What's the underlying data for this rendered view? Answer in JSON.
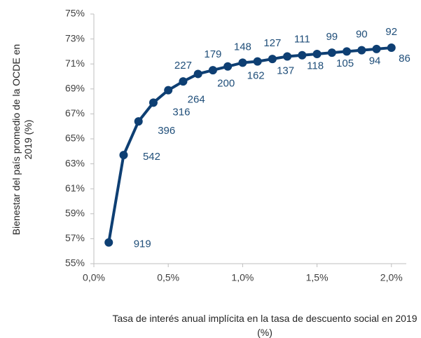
{
  "chart_data": {
    "type": "line",
    "x_label": "Tasa de interés anual implícita en la tasa de descuento social en 2019 (%)",
    "y_label": "Bienestar del país promedio de la OCDE en 2019 (%)",
    "x": [
      0.1,
      0.2,
      0.3,
      0.4,
      0.5,
      0.6,
      0.7,
      0.8,
      0.9,
      1.0,
      1.1,
      1.2,
      1.3,
      1.4,
      1.5,
      1.6,
      1.7,
      1.8,
      1.9,
      2.0
    ],
    "series": [
      {
        "color": "#0e3f73",
        "values": [
          56.7,
          63.7,
          66.4,
          67.9,
          68.9,
          69.6,
          70.2,
          70.5,
          70.8,
          71.1,
          71.2,
          71.4,
          71.6,
          71.7,
          71.8,
          71.9,
          72.0,
          72.1,
          72.2,
          72.3
        ],
        "point_labels": [
          919,
          542,
          396,
          316,
          264,
          227,
          200,
          179,
          162,
          148,
          137,
          127,
          118,
          111,
          105,
          99,
          94,
          90,
          86,
          92
        ]
      }
    ],
    "xlim": [
      0,
      2.1
    ],
    "xticks": [
      {
        "value": 0,
        "label": "0,0%"
      },
      {
        "value": 0.5,
        "label": "0,5%"
      },
      {
        "value": 1.0,
        "label": "1,0%"
      },
      {
        "value": 1.5,
        "label": "1,5%"
      },
      {
        "value": 2.0,
        "label": "2,0%"
      }
    ],
    "ylim": [
      55,
      75
    ],
    "yticks": [
      {
        "value": 55,
        "label": "55%"
      },
      {
        "value": 57,
        "label": "57%"
      },
      {
        "value": 59,
        "label": "59%"
      },
      {
        "value": 61,
        "label": "61%"
      },
      {
        "value": 63,
        "label": "63%"
      },
      {
        "value": 65,
        "label": "65%"
      },
      {
        "value": 67,
        "label": "67%"
      },
      {
        "value": 69,
        "label": "69%"
      },
      {
        "value": 71,
        "label": "71%"
      },
      {
        "value": 73,
        "label": "73%"
      },
      {
        "value": 75,
        "label": "75%"
      }
    ],
    "grid": false
  }
}
